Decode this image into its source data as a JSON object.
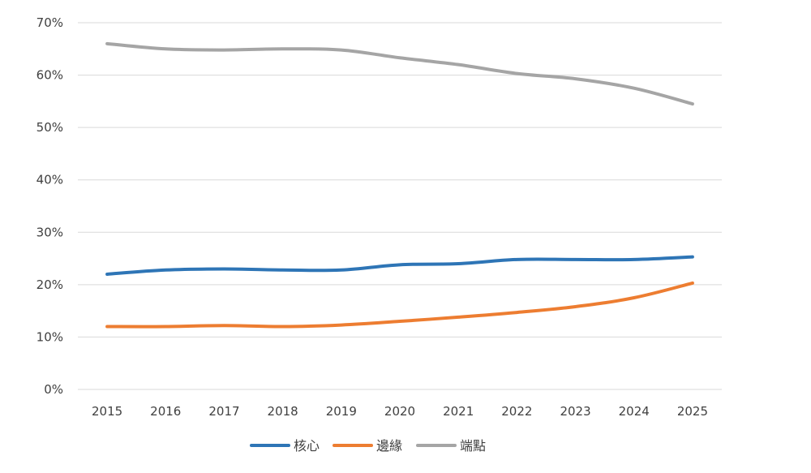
{
  "chart_data": {
    "type": "line",
    "title": "",
    "xlabel": "",
    "ylabel": "",
    "x": [
      "2015",
      "2016",
      "2017",
      "2018",
      "2019",
      "2020",
      "2021",
      "2022",
      "2023",
      "2024",
      "2025"
    ],
    "ylim": [
      0,
      70
    ],
    "yticks": [
      0,
      10,
      20,
      30,
      40,
      50,
      60,
      70
    ],
    "ytick_labels": [
      "0%",
      "10%",
      "20%",
      "30%",
      "40%",
      "50%",
      "60%",
      "70%"
    ],
    "grid": true,
    "legend_position": "bottom",
    "series": [
      {
        "name": "核心",
        "color": "#2e75b6",
        "values": [
          22.0,
          22.8,
          23.0,
          22.8,
          22.8,
          23.8,
          24.0,
          24.8,
          24.8,
          24.8,
          25.3
        ]
      },
      {
        "name": "邊緣",
        "color": "#ed7d31",
        "values": [
          12.0,
          12.0,
          12.2,
          12.0,
          12.3,
          13.0,
          13.8,
          14.7,
          15.8,
          17.5,
          20.3
        ]
      },
      {
        "name": "端點",
        "color": "#a5a5a5",
        "values": [
          66.0,
          65.0,
          64.8,
          65.0,
          64.8,
          63.3,
          62.0,
          60.3,
          59.3,
          57.5,
          54.5
        ]
      }
    ]
  }
}
